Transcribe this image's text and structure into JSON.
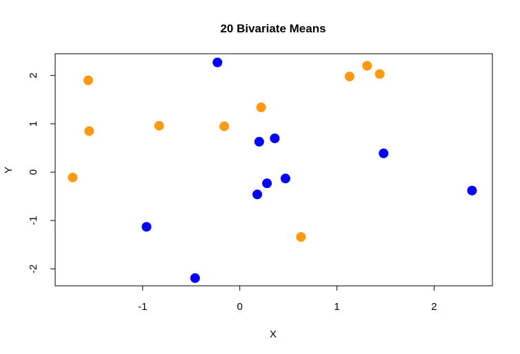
{
  "chart_data": {
    "type": "scatter",
    "title": "20 Bivariate Means",
    "xlabel": "X",
    "ylabel": "Y",
    "xlim": [
      -1.9,
      2.6
    ],
    "ylim": [
      -2.35,
      2.45
    ],
    "x_ticks": [
      -1,
      0,
      1,
      2
    ],
    "y_ticks": [
      -2,
      -1,
      0,
      1,
      2
    ],
    "x_tick_labels": [
      "-1",
      "0",
      "1",
      "2"
    ],
    "y_tick_labels": [
      "-2",
      "-1",
      "0",
      "1",
      "2"
    ],
    "grid": false,
    "legend": "none",
    "series": [
      {
        "color": "#0000ff",
        "points": [
          {
            "x": -0.23,
            "y": 2.27
          },
          {
            "x": 0.2,
            "y": 0.63
          },
          {
            "x": 0.36,
            "y": 0.7
          },
          {
            "x": 1.48,
            "y": 0.39
          },
          {
            "x": 0.47,
            "y": -0.13
          },
          {
            "x": 0.28,
            "y": -0.23
          },
          {
            "x": 0.18,
            "y": -0.46
          },
          {
            "x": 2.39,
            "y": -0.38
          },
          {
            "x": -0.96,
            "y": -1.13
          },
          {
            "x": -0.46,
            "y": -2.19
          }
        ]
      },
      {
        "color": "#ff9913",
        "points": [
          {
            "x": -1.56,
            "y": 1.9
          },
          {
            "x": -1.55,
            "y": 0.85
          },
          {
            "x": -1.72,
            "y": -0.11
          },
          {
            "x": -0.83,
            "y": 0.96
          },
          {
            "x": -0.16,
            "y": 0.95
          },
          {
            "x": 0.22,
            "y": 1.34
          },
          {
            "x": 1.13,
            "y": 1.98
          },
          {
            "x": 1.31,
            "y": 2.2
          },
          {
            "x": 1.44,
            "y": 2.03
          },
          {
            "x": 0.63,
            "y": -1.34
          }
        ]
      }
    ]
  }
}
